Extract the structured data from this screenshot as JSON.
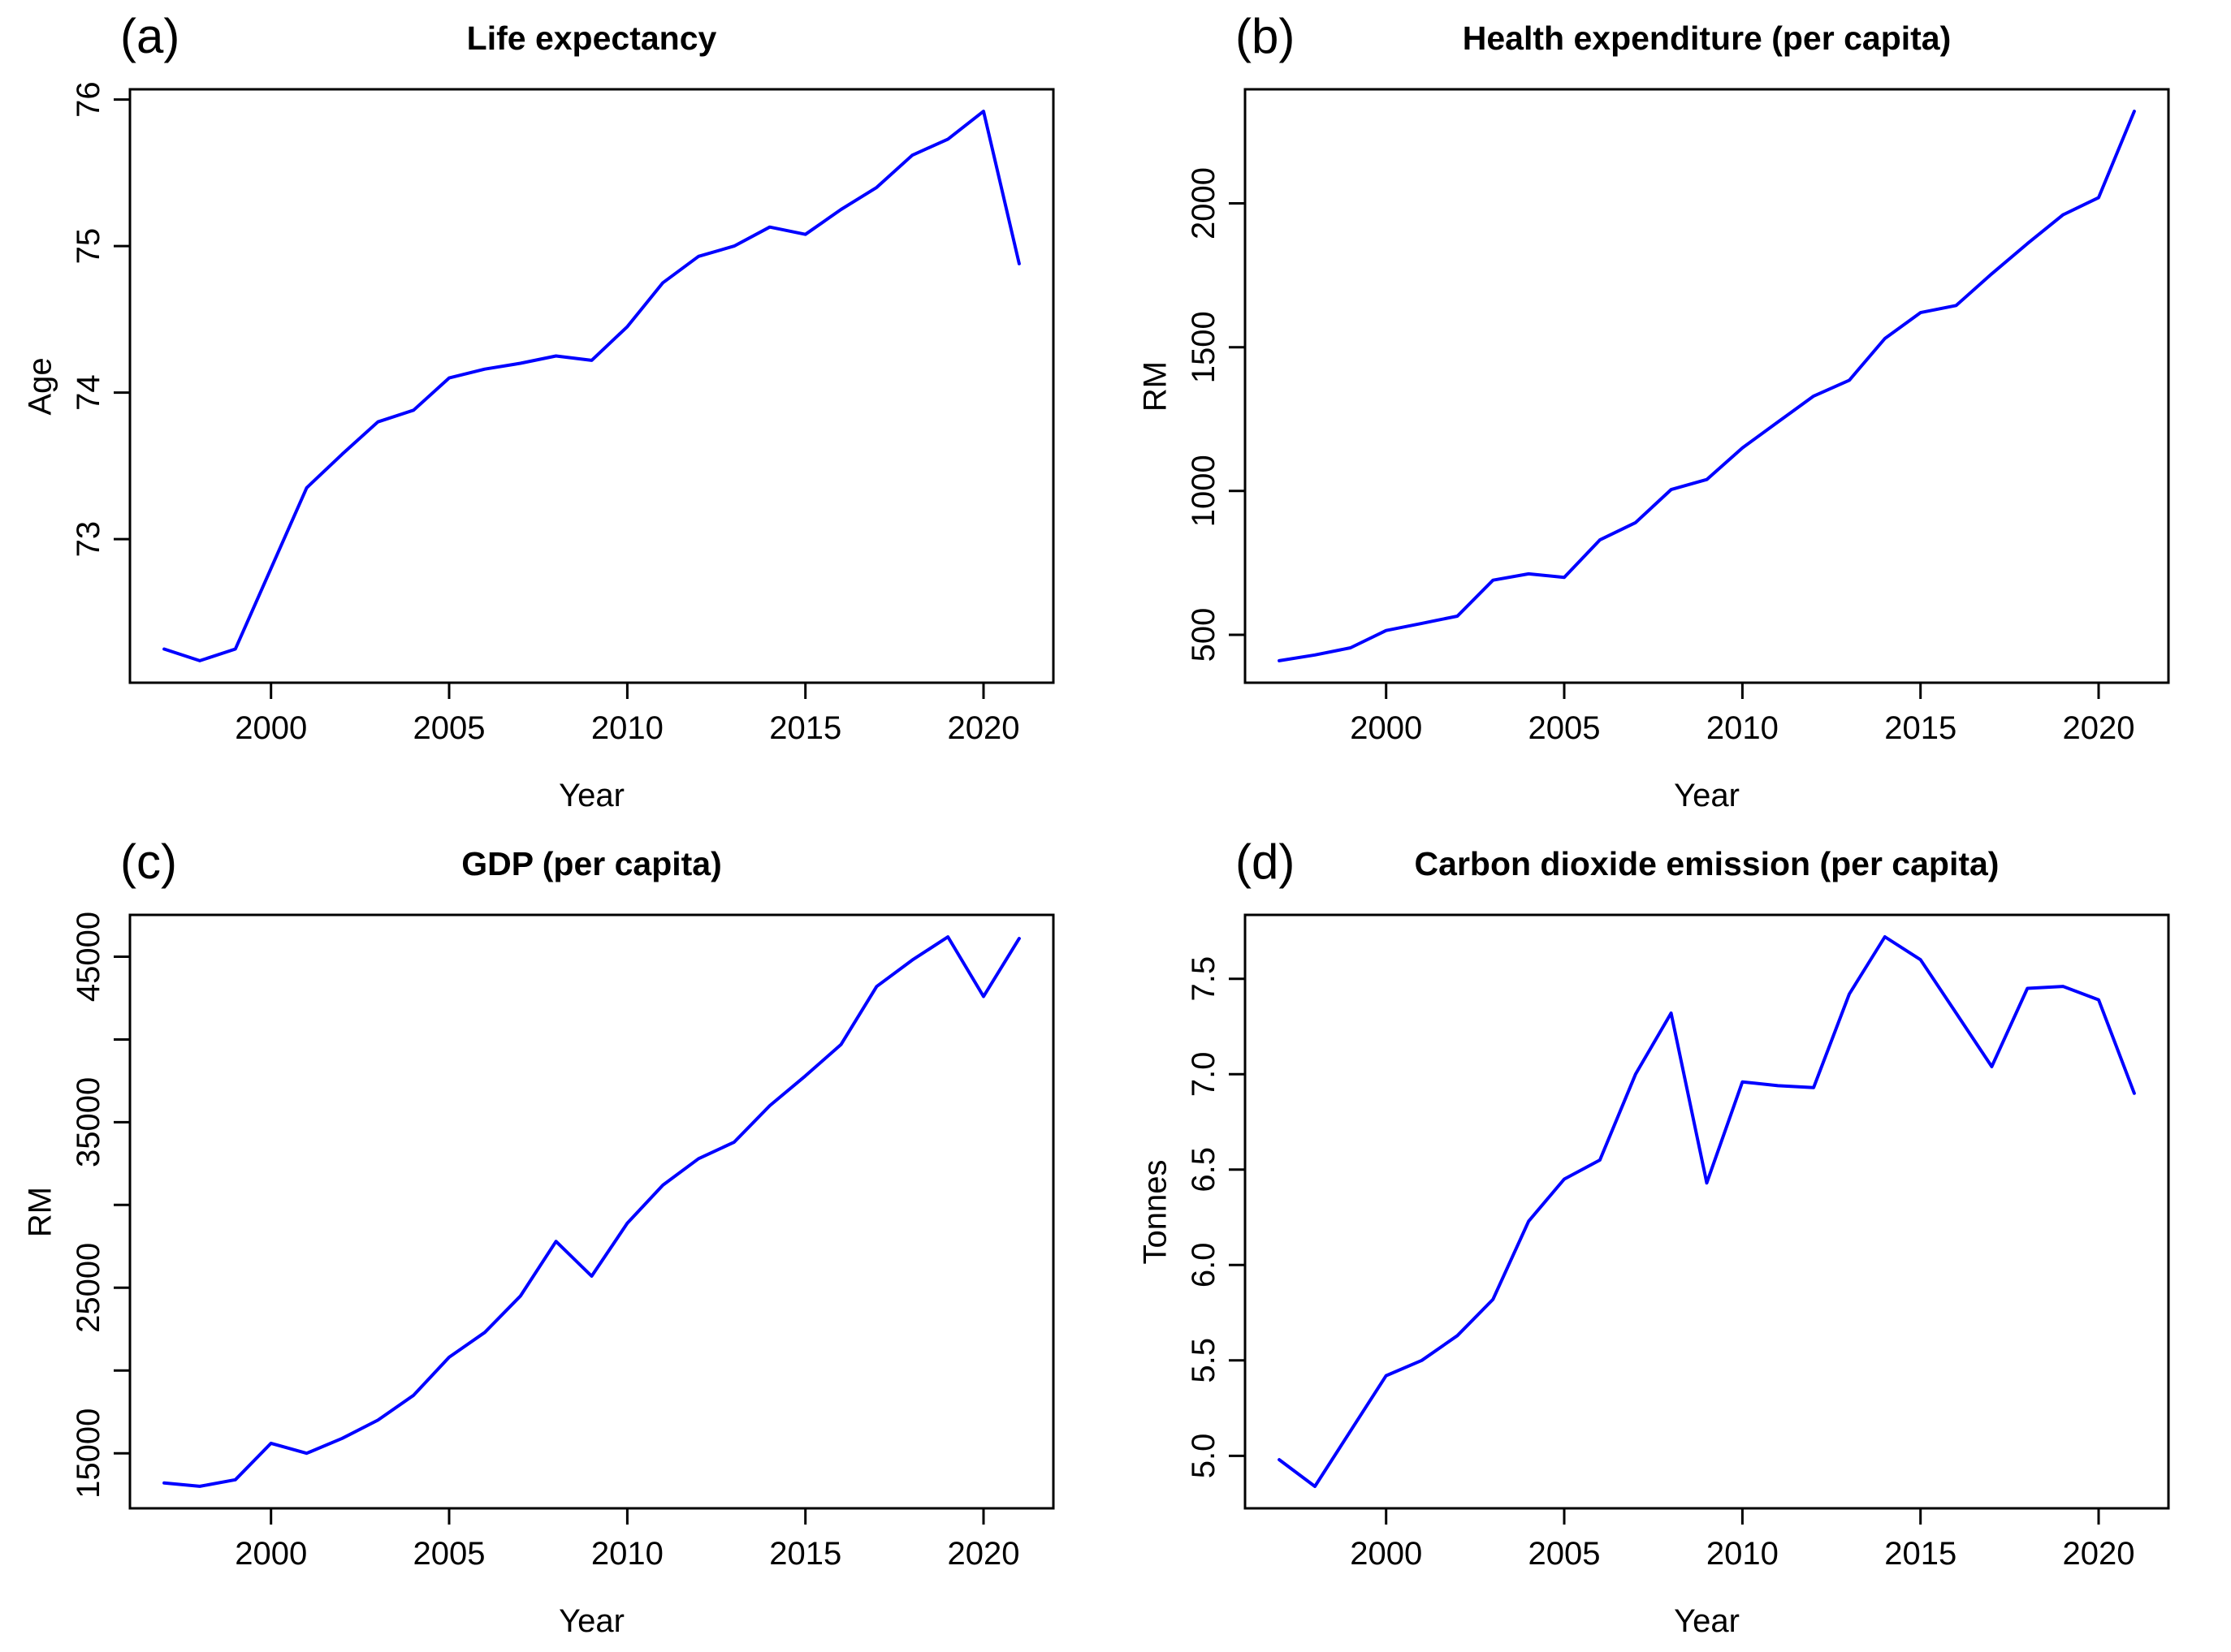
{
  "figure": {
    "background": "#ffffff",
    "line_color": "#0000ff",
    "axis_color": "#000000"
  },
  "chart_data": [
    {
      "type": "line",
      "panel_label": "(a)",
      "title": "Life expectancy",
      "xlabel": "Year",
      "ylabel": "Age",
      "grid": false,
      "legend": null,
      "x": [
        1997,
        1998,
        1999,
        2000,
        2001,
        2002,
        2003,
        2004,
        2005,
        2006,
        2007,
        2008,
        2009,
        2010,
        2011,
        2012,
        2013,
        2014,
        2015,
        2016,
        2017,
        2018,
        2019,
        2020,
        2021
      ],
      "values": [
        72.25,
        72.17,
        72.25,
        72.8,
        73.35,
        73.58,
        73.8,
        73.88,
        74.1,
        74.16,
        74.2,
        74.25,
        74.22,
        74.45,
        74.75,
        74.93,
        75.0,
        75.13,
        75.08,
        75.25,
        75.4,
        75.62,
        75.73,
        75.92,
        74.88
      ],
      "xlim": [
        1996.04,
        2021.96
      ],
      "ylim": [
        72.02,
        76.07
      ],
      "xticks": [
        2000,
        2005,
        2010,
        2015,
        2020
      ],
      "xtick_labels": [
        "2000",
        "2005",
        "2010",
        "2015",
        "2020"
      ],
      "yticks": [
        73,
        74,
        75,
        76
      ],
      "ytick_labels": [
        "73",
        "74",
        "75",
        "76"
      ]
    },
    {
      "type": "line",
      "panel_label": "(b)",
      "title": "Health expenditure (per capita)",
      "xlabel": "Year",
      "ylabel": "RM",
      "grid": false,
      "legend": null,
      "x": [
        1997,
        1998,
        1999,
        2000,
        2001,
        2002,
        2003,
        2004,
        2005,
        2006,
        2007,
        2008,
        2009,
        2010,
        2011,
        2012,
        2013,
        2014,
        2015,
        2016,
        2017,
        2018,
        2019,
        2020,
        2021
      ],
      "values": [
        410,
        430,
        455,
        515,
        540,
        565,
        690,
        712,
        700,
        830,
        890,
        1005,
        1040,
        1150,
        1240,
        1330,
        1385,
        1530,
        1620,
        1645,
        1755,
        1860,
        1960,
        2020,
        2320
      ],
      "xlim": [
        1996.04,
        2021.96
      ],
      "ylim": [
        333.6,
        2396.4
      ],
      "xticks": [
        2000,
        2005,
        2010,
        2015,
        2020
      ],
      "xtick_labels": [
        "2000",
        "2005",
        "2010",
        "2015",
        "2020"
      ],
      "yticks": [
        500,
        1000,
        1500,
        2000
      ],
      "ytick_labels": [
        "500",
        "1000",
        "1500",
        "2000"
      ]
    },
    {
      "type": "line",
      "panel_label": "(c)",
      "title": "GDP (per capita)",
      "xlabel": "Year",
      "ylabel": "RM",
      "grid": false,
      "legend": null,
      "x": [
        1997,
        1998,
        1999,
        2000,
        2001,
        2002,
        2003,
        2004,
        2005,
        2006,
        2007,
        2008,
        2009,
        2010,
        2011,
        2012,
        2013,
        2014,
        2015,
        2016,
        2017,
        2018,
        2019,
        2020,
        2021
      ],
      "values": [
        13200,
        13000,
        13400,
        15600,
        15000,
        15900,
        17000,
        18500,
        20800,
        22300,
        24500,
        27800,
        25700,
        28900,
        31200,
        32800,
        33800,
        36000,
        37800,
        39700,
        43200,
        44800,
        46200,
        42600,
        46100
      ],
      "xlim": [
        1996.04,
        2021.96
      ],
      "ylim": [
        11672,
        47528
      ],
      "xticks": [
        2000,
        2005,
        2010,
        2015,
        2020
      ],
      "xtick_labels": [
        "2000",
        "2005",
        "2010",
        "2015",
        "2020"
      ],
      "yticks": [
        15000,
        20000,
        25000,
        30000,
        35000,
        40000,
        45000
      ],
      "ytick_labels": [
        "15000",
        "",
        "25000",
        "",
        "35000",
        "",
        "45000"
      ]
    },
    {
      "type": "line",
      "panel_label": "(d)",
      "title": "Carbon dioxide emission (per capita)",
      "xlabel": "Year",
      "ylabel": "Tonnes",
      "grid": false,
      "legend": null,
      "x": [
        1997,
        1998,
        1999,
        2000,
        2001,
        2002,
        2003,
        2004,
        2005,
        2006,
        2007,
        2008,
        2009,
        2010,
        2011,
        2012,
        2013,
        2014,
        2015,
        2016,
        2017,
        2018,
        2019,
        2020,
        2021
      ],
      "values": [
        4.98,
        4.84,
        5.13,
        5.42,
        5.5,
        5.63,
        5.82,
        6.23,
        6.45,
        6.55,
        7.0,
        7.32,
        6.43,
        6.96,
        6.94,
        6.93,
        7.42,
        7.72,
        7.6,
        7.32,
        7.04,
        7.45,
        7.46,
        7.39,
        6.9
      ],
      "xlim": [
        1996.04,
        2021.96
      ],
      "ylim": [
        4.725,
        7.835
      ],
      "xticks": [
        2000,
        2005,
        2010,
        2015,
        2020
      ],
      "xtick_labels": [
        "2000",
        "2005",
        "2010",
        "2015",
        "2020"
      ],
      "yticks": [
        5.0,
        5.5,
        6.0,
        6.5,
        7.0,
        7.5
      ],
      "ytick_labels": [
        "5.0",
        "5.5",
        "6.0",
        "6.5",
        "7.0",
        "7.5"
      ]
    }
  ]
}
